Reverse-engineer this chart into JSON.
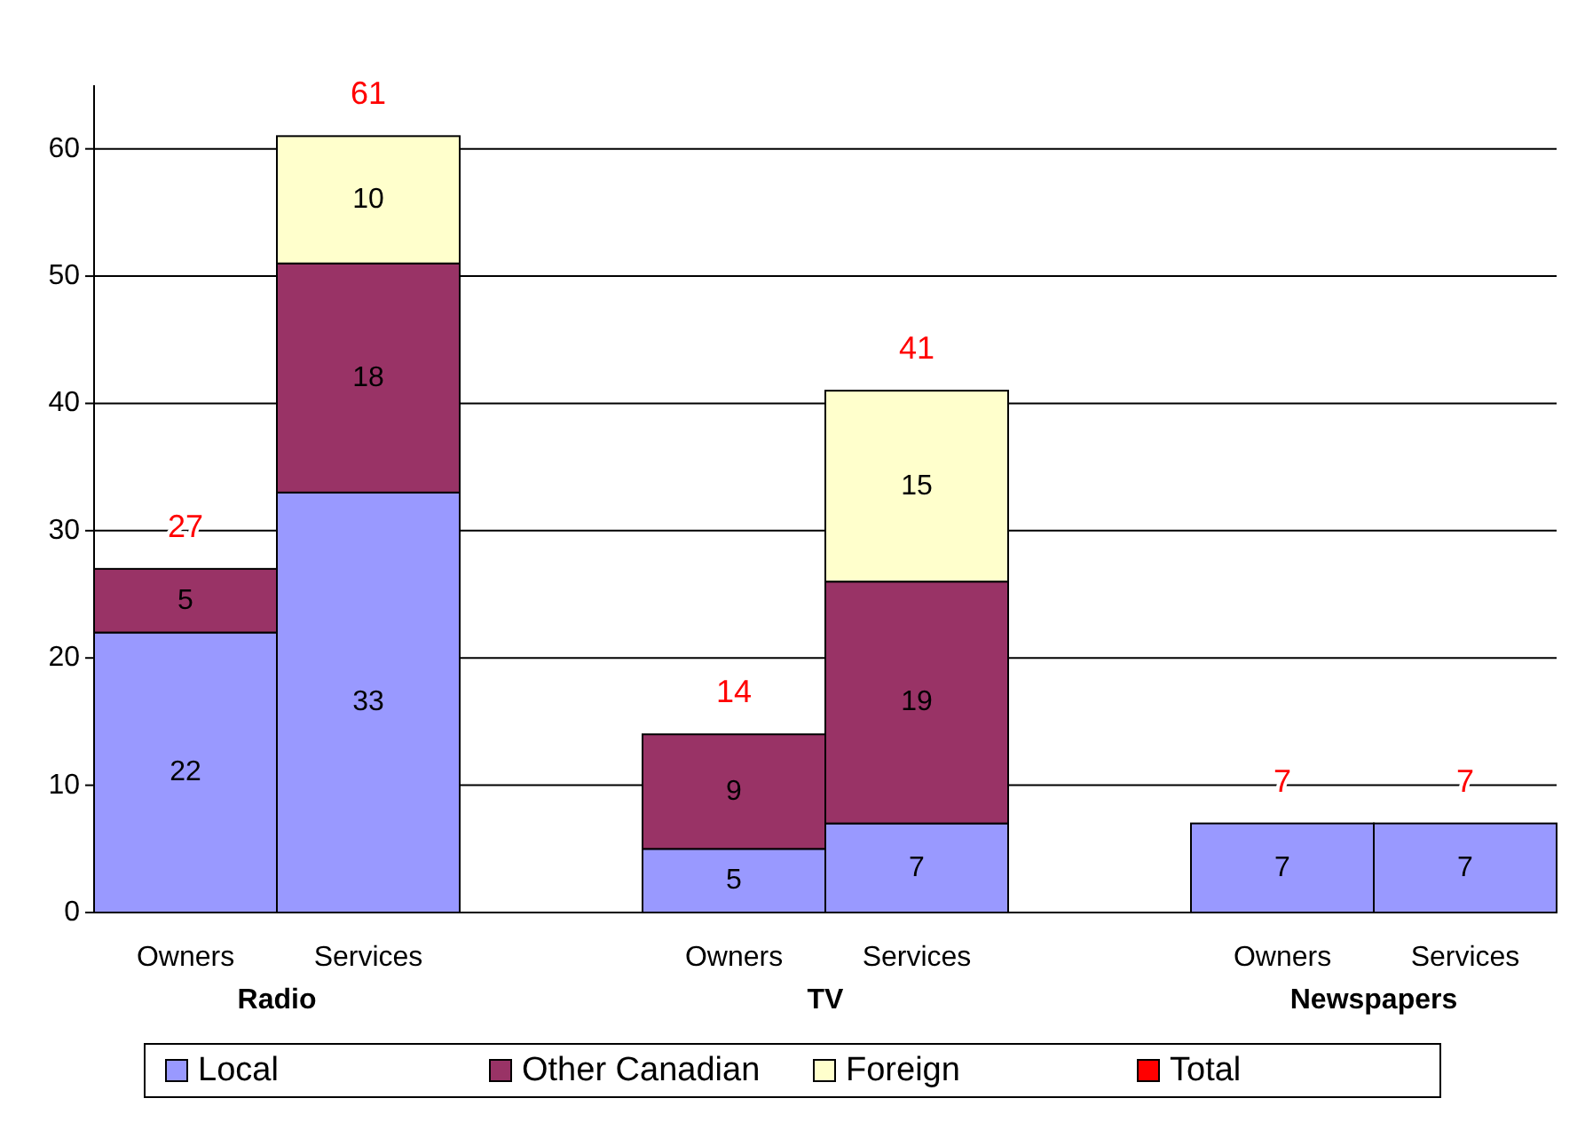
{
  "chart_data": {
    "type": "bar",
    "stacked": true,
    "categories": [
      "Owners",
      "Services",
      null,
      "Owners",
      "Services",
      null,
      "Owners",
      "Services"
    ],
    "annotations": [
      "Radio",
      "TV",
      "Newspapers"
    ],
    "series": [
      {
        "name": "Local",
        "color": "#9999ff",
        "values": [
          22,
          33,
          null,
          5,
          7,
          null,
          7,
          7
        ]
      },
      {
        "name": "Other Canadian",
        "color": "#993366",
        "values": [
          5,
          18,
          null,
          9,
          19,
          null,
          null,
          null
        ]
      },
      {
        "name": "Foreign",
        "color": "#ffffcc",
        "values": [
          null,
          10,
          null,
          null,
          15,
          null,
          null,
          null
        ]
      },
      {
        "name": "Total",
        "color": "#ff0000",
        "values": [
          null,
          null,
          null,
          null,
          null,
          null,
          null,
          null
        ]
      }
    ],
    "totals": [
      "27",
      "61",
      null,
      "14",
      "41",
      null,
      "7",
      "7"
    ],
    "ylim": [
      0,
      65
    ],
    "yticks": [
      0,
      10,
      20,
      30,
      40,
      50,
      60
    ],
    "grid": "y",
    "data_labels": true,
    "legend": "bottom"
  }
}
